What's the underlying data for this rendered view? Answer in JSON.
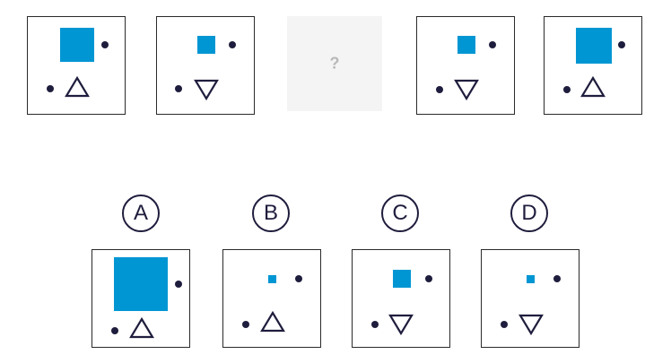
{
  "sequence": {
    "missing_symbol": "?",
    "tiles": [
      {
        "square": "large",
        "triangle": "up"
      },
      {
        "square": "medium",
        "triangle": "down"
      },
      {
        "missing": true
      },
      {
        "square": "medium",
        "triangle": "down"
      },
      {
        "square": "large",
        "triangle": "up"
      }
    ]
  },
  "options": [
    {
      "label": "A",
      "square": "extra-large",
      "triangle": "up"
    },
    {
      "label": "B",
      "square": "small",
      "triangle": "up"
    },
    {
      "label": "C",
      "square": "medium",
      "triangle": "down"
    },
    {
      "label": "D",
      "square": "small",
      "triangle": "down"
    }
  ],
  "colors": {
    "square": "#0096d3",
    "dot": "#1f1d3d",
    "outline": "#1f1d3d",
    "tile_border": "#2a2a2a",
    "missing_tile": "#f4f4f4",
    "missing_symbol": "#b8b8b8"
  }
}
